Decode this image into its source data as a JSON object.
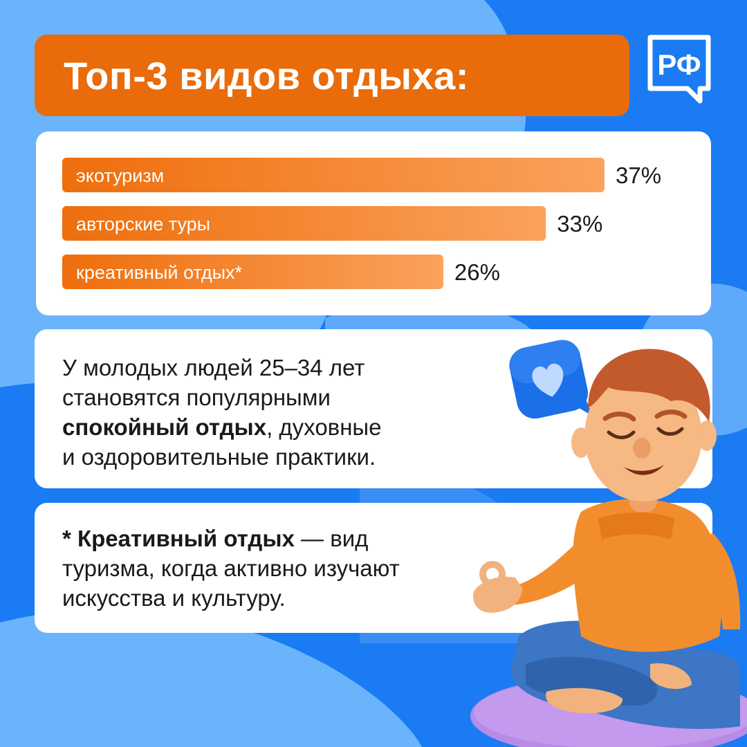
{
  "header": {
    "title": "Топ-3 видов отдыха:",
    "logo_text": "РФ"
  },
  "chart_data": {
    "type": "bar",
    "orientation": "horizontal",
    "categories": [
      "экотуризм",
      "авторские туры",
      "креативный отдых*"
    ],
    "values": [
      37,
      33,
      26
    ],
    "value_labels": [
      "37%",
      "33%",
      "26%"
    ],
    "unit": "%",
    "title": "",
    "xlabel": "",
    "ylabel": "",
    "xlim": [
      0,
      37
    ],
    "grid": false,
    "legend": "none"
  },
  "info": {
    "line1": "У молодых людей 25–34 лет",
    "line2": "становятся популярными",
    "line3_bold": "спокойный отдых",
    "line3_rest": ", духовные",
    "line4": "и оздоровительные практики."
  },
  "note": {
    "bold": "* Креативный отдых",
    "rest1": " — вид",
    "line2": "туризма, когда активно изучают",
    "line3": "искусства и культуру."
  },
  "colors": {
    "background": "#1A7BF2",
    "background_light": "#6AB4FB",
    "accent": "#EA6B0A",
    "bar_start": "#EE6E0C",
    "bar_end": "#FBA25C",
    "card": "#FFFFFF",
    "text": "#1A1A1A"
  },
  "icons": {
    "logo": "rf-chat-logo-icon",
    "heart": "heart-bubble-icon",
    "person": "meditating-man-illustration"
  }
}
